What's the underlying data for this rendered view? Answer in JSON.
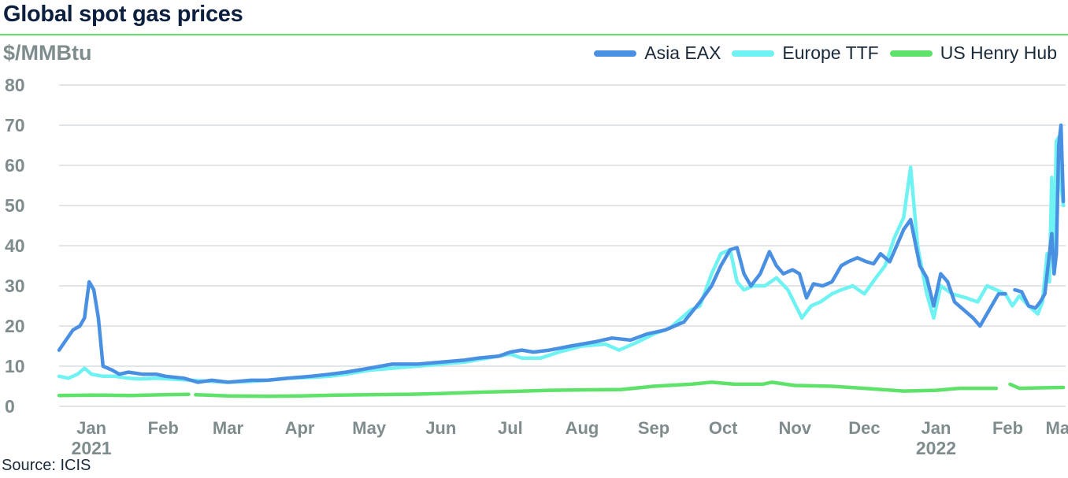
{
  "title": "Global spot gas prices",
  "source": "Source: ICIS",
  "chart_data": {
    "type": "line",
    "title": "Global spot gas prices",
    "ylabel": "$/MMBtu",
    "ylim": [
      0,
      80
    ],
    "yticks": [
      0,
      10,
      20,
      30,
      40,
      50,
      60,
      70,
      80
    ],
    "grid": "horizontal",
    "legend_position": "top-right",
    "x_domain": [
      "2021-01-01",
      "2022-03-12"
    ],
    "x_ticks": [
      {
        "label": "Jan",
        "date": "2021-01-15"
      },
      {
        "label": "Feb",
        "date": "2021-02-15"
      },
      {
        "label": "Mar",
        "date": "2021-03-15"
      },
      {
        "label": "Apr",
        "date": "2021-04-15"
      },
      {
        "label": "May",
        "date": "2021-05-15"
      },
      {
        "label": "Jun",
        "date": "2021-06-15"
      },
      {
        "label": "Jul",
        "date": "2021-07-15"
      },
      {
        "label": "Aug",
        "date": "2021-08-15"
      },
      {
        "label": "Sep",
        "date": "2021-09-15"
      },
      {
        "label": "Oct",
        "date": "2021-10-15"
      },
      {
        "label": "Nov",
        "date": "2021-11-15"
      },
      {
        "label": "Dec",
        "date": "2021-12-15"
      },
      {
        "label": "Jan",
        "date": "2022-01-15"
      },
      {
        "label": "Feb",
        "date": "2022-02-15"
      },
      {
        "label": "Mar",
        "date": "2022-03-10"
      }
    ],
    "year_labels": [
      {
        "label": "2021",
        "date": "2021-01-15"
      },
      {
        "label": "2022",
        "date": "2022-01-15"
      }
    ],
    "series": [
      {
        "name": "Asia EAX",
        "color": "#4a90e2",
        "points": [
          [
            "2021-01-01",
            14.0
          ],
          [
            "2021-01-07",
            19.0
          ],
          [
            "2021-01-10",
            20.0
          ],
          [
            "2021-01-12",
            22.0
          ],
          [
            "2021-01-14",
            31.0
          ],
          [
            "2021-01-16",
            29.0
          ],
          [
            "2021-01-18",
            22.0
          ],
          [
            "2021-01-20",
            10.0
          ],
          [
            "2021-01-24",
            9.0
          ],
          [
            "2021-01-27",
            8.0
          ],
          [
            "2021-01-31",
            8.5
          ],
          [
            "2021-02-06",
            8.0
          ],
          [
            "2021-02-12",
            8.0
          ],
          [
            "2021-02-16",
            7.5
          ],
          [
            "2021-02-24",
            7.0
          ],
          [
            "2021-02-27",
            6.5
          ],
          [
            "2021-03-02",
            6.0
          ],
          [
            "2021-03-08",
            6.5
          ],
          [
            "2021-03-15",
            6.0
          ],
          [
            "2021-03-25",
            6.5
          ],
          [
            "2021-04-01",
            6.5
          ],
          [
            "2021-04-10",
            7.0
          ],
          [
            "2021-04-20",
            7.5
          ],
          [
            "2021-04-28",
            8.0
          ],
          [
            "2021-05-05",
            8.5
          ],
          [
            "2021-05-15",
            9.5
          ],
          [
            "2021-05-25",
            10.5
          ],
          [
            "2021-06-05",
            10.5
          ],
          [
            "2021-06-15",
            11.0
          ],
          [
            "2021-06-25",
            11.5
          ],
          [
            "2021-07-01",
            12.0
          ],
          [
            "2021-07-10",
            12.5
          ],
          [
            "2021-07-15",
            13.5
          ],
          [
            "2021-07-20",
            14.0
          ],
          [
            "2021-07-25",
            13.5
          ],
          [
            "2021-08-01",
            14.0
          ],
          [
            "2021-08-10",
            15.0
          ],
          [
            "2021-08-20",
            16.0
          ],
          [
            "2021-08-28",
            17.0
          ],
          [
            "2021-09-05",
            16.5
          ],
          [
            "2021-09-12",
            18.0
          ],
          [
            "2021-09-20",
            19.0
          ],
          [
            "2021-09-28",
            21.0
          ],
          [
            "2021-10-05",
            26.0
          ],
          [
            "2021-10-10",
            30.0
          ],
          [
            "2021-10-14",
            35.0
          ],
          [
            "2021-10-18",
            39.0
          ],
          [
            "2021-10-21",
            39.5
          ],
          [
            "2021-10-24",
            33.0
          ],
          [
            "2021-10-27",
            30.0
          ],
          [
            "2021-10-31",
            33.0
          ],
          [
            "2021-11-04",
            38.5
          ],
          [
            "2021-11-07",
            35.0
          ],
          [
            "2021-11-10",
            33.0
          ],
          [
            "2021-11-14",
            34.0
          ],
          [
            "2021-11-17",
            33.0
          ],
          [
            "2021-11-20",
            27.0
          ],
          [
            "2021-11-23",
            30.5
          ],
          [
            "2021-11-27",
            30.0
          ],
          [
            "2021-12-01",
            31.0
          ],
          [
            "2021-12-05",
            35.0
          ],
          [
            "2021-12-08",
            36.0
          ],
          [
            "2021-12-12",
            37.0
          ],
          [
            "2021-12-16",
            36.0
          ],
          [
            "2021-12-19",
            35.5
          ],
          [
            "2021-12-22",
            38.0
          ],
          [
            "2021-12-26",
            36.0
          ],
          [
            "2021-12-29",
            40.0
          ],
          [
            "2022-01-01",
            44.0
          ],
          [
            "2022-01-04",
            46.5
          ],
          [
            "2022-01-08",
            35.0
          ],
          [
            "2022-01-11",
            32.0
          ],
          [
            "2022-01-14",
            25.0
          ],
          [
            "2022-01-17",
            33.0
          ],
          [
            "2022-01-20",
            31.0
          ],
          [
            "2022-01-23",
            26.0
          ],
          [
            "2022-01-27",
            24.0
          ],
          [
            "2022-01-31",
            22.0
          ],
          [
            "2022-02-03",
            20.0
          ],
          [
            "2022-02-07",
            24.0
          ],
          [
            "2022-02-11",
            28.0
          ],
          [
            "2022-02-14",
            28.0
          ],
          [
            "2022-02-15",
            null
          ],
          [
            "2022-02-18",
            29.0
          ],
          [
            "2022-02-21",
            28.5
          ],
          [
            "2022-02-24",
            25.0
          ],
          [
            "2022-02-27",
            24.5
          ],
          [
            "2022-03-01",
            26.0
          ],
          [
            "2022-03-03",
            28.0
          ],
          [
            "2022-03-05",
            38.0
          ],
          [
            "2022-03-06",
            43.0
          ],
          [
            "2022-03-07",
            33.0
          ],
          [
            "2022-03-08",
            38.0
          ],
          [
            "2022-03-09",
            65.0
          ],
          [
            "2022-03-10",
            70.0
          ],
          [
            "2022-03-11",
            51.0
          ]
        ]
      },
      {
        "name": "Europe TTF",
        "color": "#6ff2f2",
        "points": [
          [
            "2021-01-01",
            7.5
          ],
          [
            "2021-01-05",
            7.0
          ],
          [
            "2021-01-09",
            8.0
          ],
          [
            "2021-01-12",
            9.5
          ],
          [
            "2021-01-15",
            8.0
          ],
          [
            "2021-01-20",
            7.5
          ],
          [
            "2021-01-25",
            7.5
          ],
          [
            "2021-01-31",
            7.0
          ],
          [
            "2021-02-05",
            6.8
          ],
          [
            "2021-02-12",
            7.0
          ],
          [
            "2021-02-18",
            6.8
          ],
          [
            "2021-02-27",
            6.5
          ],
          [
            "2021-03-05",
            6.3
          ],
          [
            "2021-03-15",
            6.0
          ],
          [
            "2021-03-25",
            6.2
          ],
          [
            "2021-04-01",
            6.5
          ],
          [
            "2021-04-10",
            7.0
          ],
          [
            "2021-04-20",
            7.2
          ],
          [
            "2021-04-28",
            7.5
          ],
          [
            "2021-05-05",
            8.0
          ],
          [
            "2021-05-15",
            9.0
          ],
          [
            "2021-05-25",
            9.5
          ],
          [
            "2021-06-05",
            10.0
          ],
          [
            "2021-06-15",
            10.5
          ],
          [
            "2021-06-25",
            11.0
          ],
          [
            "2021-07-05",
            12.0
          ],
          [
            "2021-07-15",
            13.0
          ],
          [
            "2021-07-20",
            12.0
          ],
          [
            "2021-07-28",
            12.0
          ],
          [
            "2021-08-05",
            13.5
          ],
          [
            "2021-08-15",
            15.0
          ],
          [
            "2021-08-25",
            15.5
          ],
          [
            "2021-08-31",
            14.0
          ],
          [
            "2021-09-08",
            16.0
          ],
          [
            "2021-09-15",
            18.0
          ],
          [
            "2021-09-22",
            19.5
          ],
          [
            "2021-10-01",
            24.0
          ],
          [
            "2021-10-05",
            25.0
          ],
          [
            "2021-10-10",
            33.0
          ],
          [
            "2021-10-14",
            38.0
          ],
          [
            "2021-10-18",
            39.0
          ],
          [
            "2021-10-21",
            31.0
          ],
          [
            "2021-10-24",
            29.0
          ],
          [
            "2021-10-28",
            30.0
          ],
          [
            "2021-11-02",
            30.0
          ],
          [
            "2021-11-07",
            32.0
          ],
          [
            "2021-11-12",
            29.0
          ],
          [
            "2021-11-18",
            22.0
          ],
          [
            "2021-11-22",
            25.0
          ],
          [
            "2021-11-26",
            26.0
          ],
          [
            "2021-12-01",
            28.0
          ],
          [
            "2021-12-05",
            29.0
          ],
          [
            "2021-12-10",
            30.0
          ],
          [
            "2021-12-15",
            28.0
          ],
          [
            "2021-12-20",
            32.0
          ],
          [
            "2021-12-24",
            35.0
          ],
          [
            "2021-12-28",
            42.0
          ],
          [
            "2022-01-01",
            47.0
          ],
          [
            "2022-01-04",
            59.5
          ],
          [
            "2022-01-07",
            40.0
          ],
          [
            "2022-01-11",
            28.0
          ],
          [
            "2022-01-14",
            22.0
          ],
          [
            "2022-01-17",
            30.0
          ],
          [
            "2022-01-22",
            28.0
          ],
          [
            "2022-01-28",
            27.0
          ],
          [
            "2022-02-02",
            26.0
          ],
          [
            "2022-02-06",
            30.0
          ],
          [
            "2022-02-10",
            29.0
          ],
          [
            "2022-02-14",
            28.0
          ],
          [
            "2022-02-17",
            25.0
          ],
          [
            "2022-02-20",
            27.5
          ],
          [
            "2022-02-24",
            25.0
          ],
          [
            "2022-02-28",
            23.0
          ],
          [
            "2022-03-02",
            26.0
          ],
          [
            "2022-03-04",
            38.0
          ],
          [
            "2022-03-05",
            31.0
          ],
          [
            "2022-03-06",
            57.0
          ],
          [
            "2022-03-07",
            38.0
          ],
          [
            "2022-03-08",
            66.0
          ],
          [
            "2022-03-09",
            67.0
          ],
          [
            "2022-03-10",
            55.0
          ],
          [
            "2022-03-11",
            50.0
          ]
        ]
      },
      {
        "name": "US Henry Hub",
        "color": "#5ee26a",
        "points": [
          [
            "2021-01-01",
            2.7
          ],
          [
            "2021-01-15",
            2.8
          ],
          [
            "2021-02-01",
            2.7
          ],
          [
            "2021-02-15",
            2.9
          ],
          [
            "2021-02-26",
            3.0
          ],
          [
            "2021-02-27",
            null
          ],
          [
            "2021-03-01",
            2.9
          ],
          [
            "2021-03-15",
            2.6
          ],
          [
            "2021-04-01",
            2.5
          ],
          [
            "2021-04-15",
            2.6
          ],
          [
            "2021-05-01",
            2.8
          ],
          [
            "2021-05-15",
            2.9
          ],
          [
            "2021-06-01",
            3.0
          ],
          [
            "2021-06-15",
            3.2
          ],
          [
            "2021-07-01",
            3.5
          ],
          [
            "2021-07-15",
            3.7
          ],
          [
            "2021-08-01",
            4.0
          ],
          [
            "2021-08-15",
            4.1
          ],
          [
            "2021-09-01",
            4.2
          ],
          [
            "2021-09-15",
            5.0
          ],
          [
            "2021-10-01",
            5.5
          ],
          [
            "2021-10-10",
            6.0
          ],
          [
            "2021-10-20",
            5.5
          ],
          [
            "2021-11-01",
            5.5
          ],
          [
            "2021-11-05",
            6.0
          ],
          [
            "2021-11-15",
            5.2
          ],
          [
            "2021-12-01",
            5.0
          ],
          [
            "2021-12-15",
            4.5
          ],
          [
            "2022-01-01",
            3.8
          ],
          [
            "2022-01-15",
            4.0
          ],
          [
            "2022-01-25",
            4.5
          ],
          [
            "2022-02-10",
            4.5
          ],
          [
            "2022-02-13",
            null
          ],
          [
            "2022-02-16",
            5.5
          ],
          [
            "2022-02-20",
            4.5
          ],
          [
            "2022-03-01",
            4.6
          ],
          [
            "2022-03-11",
            4.7
          ]
        ]
      }
    ]
  }
}
